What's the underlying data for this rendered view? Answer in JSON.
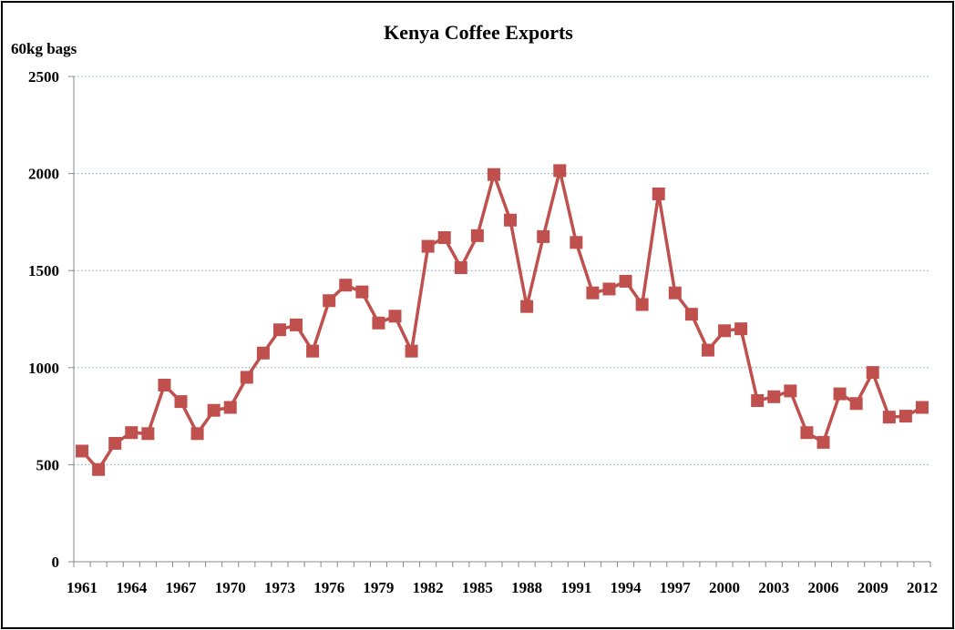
{
  "chart_data": {
    "type": "line",
    "title": "Kenya Coffee Exports",
    "ylabel": "60kg bags",
    "xlabel": "",
    "ylim": [
      0,
      2500
    ],
    "yticks": [
      "0",
      "500",
      "1000",
      "1500",
      "2000",
      "2500"
    ],
    "xtick_labels": [
      "1961",
      "1964",
      "1967",
      "1970",
      "1973",
      "1976",
      "1979",
      "1982",
      "1985",
      "1988",
      "1991",
      "1994",
      "1997",
      "2000",
      "2003",
      "2006",
      "2009",
      "2012"
    ],
    "grid": "horizontal dotted",
    "series": [
      {
        "color": "#c0504d",
        "x": [
          1961,
          1962,
          1963,
          1964,
          1965,
          1966,
          1967,
          1968,
          1969,
          1970,
          1971,
          1972,
          1973,
          1974,
          1975,
          1976,
          1977,
          1978,
          1979,
          1980,
          1981,
          1982,
          1983,
          1984,
          1985,
          1986,
          1987,
          1988,
          1989,
          1990,
          1991,
          1992,
          1993,
          1994,
          1995,
          1996,
          1997,
          1998,
          1999,
          2000,
          2001,
          2002,
          2003,
          2004,
          2005,
          2006,
          2007,
          2008,
          2009,
          2010,
          2011,
          2012
        ],
        "values": [
          570,
          475,
          610,
          665,
          660,
          910,
          825,
          660,
          780,
          795,
          950,
          1075,
          1195,
          1220,
          1085,
          1345,
          1425,
          1390,
          1230,
          1265,
          1085,
          1625,
          1670,
          1515,
          1680,
          1995,
          1760,
          1315,
          1675,
          2015,
          1645,
          1385,
          1405,
          1445,
          1325,
          1895,
          1385,
          1275,
          1090,
          1190,
          1200,
          830,
          850,
          880,
          665,
          615,
          865,
          815,
          975,
          745,
          750,
          795
        ]
      }
    ]
  }
}
